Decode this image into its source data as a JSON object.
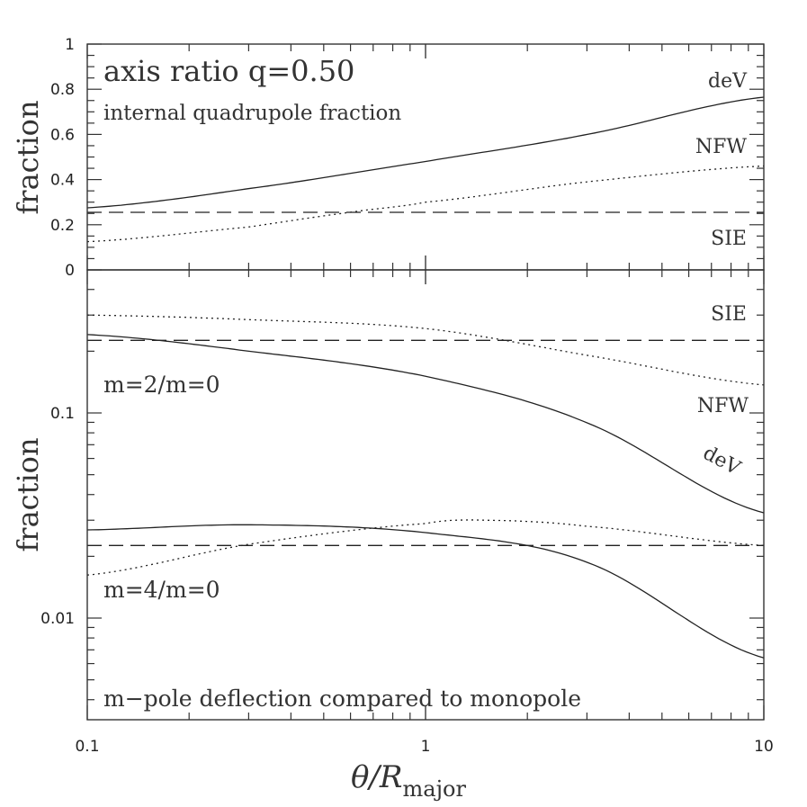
{
  "chart_data": [
    {
      "type": "line",
      "panel": "top",
      "title": "axis ratio q=0.50",
      "subtitle": "internal quadrupole fraction",
      "xlabel": "θ/R_major",
      "ylabel": "fraction",
      "xscale": "log",
      "xlim": [
        0.1,
        10
      ],
      "ylim": [
        0,
        1
      ],
      "yticks": [
        0,
        0.2,
        0.4,
        0.6,
        0.8,
        1
      ],
      "ytick_labels": [
        "0",
        "0.2",
        "0.4",
        "0.6",
        "0.8",
        "1"
      ],
      "series": [
        {
          "name": "deV",
          "style": "solid",
          "x": [
            0.1,
            0.3,
            1,
            3,
            10
          ],
          "y": [
            0.275,
            0.36,
            0.48,
            0.6,
            0.765
          ]
        },
        {
          "name": "NFW",
          "style": "dotted",
          "x": [
            0.1,
            0.3,
            0.6,
            1,
            3,
            10
          ],
          "y": [
            0.125,
            0.19,
            0.255,
            0.3,
            0.39,
            0.46
          ]
        },
        {
          "name": "SIE",
          "style": "dashed",
          "x": [
            0.1,
            10
          ],
          "y": [
            0.255,
            0.255
          ]
        }
      ]
    },
    {
      "type": "line",
      "panel": "bottom",
      "xlabel": "θ/R_major",
      "ylabel": "fraction",
      "xscale": "log",
      "yscale": "log",
      "xlim": [
        0.1,
        10
      ],
      "ylim": [
        0.00316,
        0.49
      ],
      "xticks": [
        0.1,
        1,
        10
      ],
      "xtick_labels": [
        "0.1",
        "1",
        "10"
      ],
      "yticks": [
        0.01,
        0.1
      ],
      "ytick_labels": [
        "0.01",
        "0.1"
      ],
      "annotations": [
        "m=2/m=0",
        "m=4/m=0",
        "m−pole deflection compared to monopole"
      ],
      "series": [
        {
          "name": "SIE",
          "group": "m=2/m=0",
          "style": "dashed",
          "x": [
            0.1,
            10
          ],
          "y": [
            0.226,
            0.226
          ]
        },
        {
          "name": "NFW",
          "group": "m=2/m=0",
          "style": "dotted",
          "x": [
            0.1,
            0.3,
            1,
            3,
            10
          ],
          "y": [
            0.3,
            0.285,
            0.258,
            0.191,
            0.137
          ]
        },
        {
          "name": "deV",
          "group": "m=2/m=0",
          "style": "solid",
          "x": [
            0.1,
            0.3,
            1,
            3,
            10
          ],
          "y": [
            0.241,
            0.2,
            0.151,
            0.0895,
            0.0326
          ]
        },
        {
          "name": "SIE",
          "group": "m=4/m=0",
          "style": "dashed",
          "x": [
            0.1,
            10
          ],
          "y": [
            0.0226,
            0.0226
          ]
        },
        {
          "name": "deV",
          "group": "m=4/m=0",
          "style": "solid",
          "x": [
            0.1,
            0.3,
            1,
            3,
            10
          ],
          "y": [
            0.0269,
            0.0285,
            0.0261,
            0.0187,
            0.0064
          ]
        },
        {
          "name": "NFW",
          "group": "m=4/m=0",
          "style": "dotted",
          "x": [
            0.1,
            0.3,
            1,
            1.5,
            3,
            10
          ],
          "y": [
            0.0162,
            0.0229,
            0.0289,
            0.03,
            0.028,
            0.0226
          ]
        }
      ]
    }
  ],
  "labels": {
    "top_title": "axis ratio q=0.50",
    "top_subtitle": "internal quadrupole fraction",
    "top_devs": "deV",
    "top_nfw": "NFW",
    "top_sie": "SIE",
    "bot_sie": "SIE",
    "bot_nfw": "NFW",
    "bot_dev": "deV",
    "m2": "m=2/m=0",
    "m4": "m=4/m=0",
    "footer": "m−pole deflection compared to monopole",
    "ylabel_top": "fraction",
    "ylabel_bottom": "fraction",
    "xlabel_theta": "θ/R",
    "xlabel_sub": "major"
  }
}
